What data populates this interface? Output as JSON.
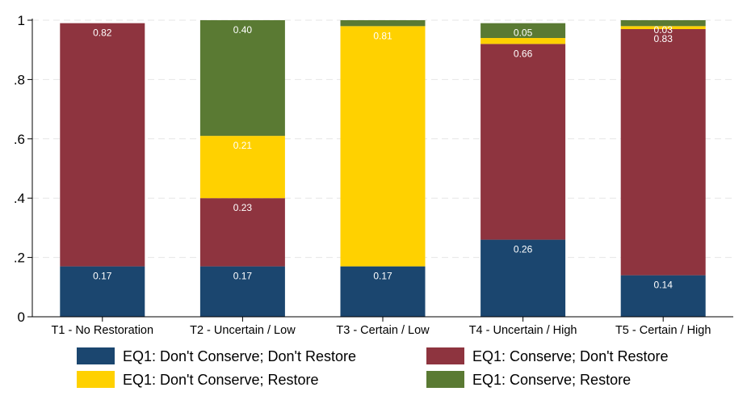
{
  "chart_data": {
    "type": "bar",
    "stacked": true,
    "categories": [
      "T1 - No Restoration",
      "T2 - Uncertain / Low",
      "T3 - Certain / Low",
      "T4 - Uncertain / High",
      "T5 - Certain / High"
    ],
    "series": [
      {
        "name": "EQ1: Don't Conserve; Don't Restore",
        "color": "#1b466f",
        "values": [
          0.17,
          0.17,
          0.17,
          0.26,
          0.14
        ],
        "labels": [
          "0.17",
          "0.17",
          "0.17",
          "0.26",
          "0.14"
        ]
      },
      {
        "name": "EQ1: Conserve; Don't Restore",
        "color": "#8e343f",
        "values": [
          0.82,
          0.23,
          0.0,
          0.66,
          0.83
        ],
        "labels": [
          "0.82",
          "0.23",
          "",
          "0.66",
          "0.83"
        ]
      },
      {
        "name": "EQ1: Don't Conserve; Restore",
        "color": "#ffd100",
        "values": [
          0.0,
          0.21,
          0.81,
          0.02,
          0.01
        ],
        "labels": [
          "",
          "0.21",
          "0.81",
          "",
          ""
        ]
      },
      {
        "name": "EQ1: Conserve; Restore",
        "color": "#5a7a33",
        "values": [
          0.0,
          0.4,
          0.02,
          0.05,
          0.03
        ],
        "labels": [
          "",
          "0.40",
          "",
          "0.05",
          "0.03"
        ]
      }
    ],
    "yticks": [
      0,
      0.2,
      0.4,
      0.6,
      0.8,
      1
    ],
    "ytick_labels": [
      "0",
      ".2",
      ".4",
      ".6",
      ".8",
      "1"
    ],
    "ylim": [
      0,
      1
    ],
    "grid": true,
    "legend_position": "bottom",
    "title": "",
    "xlabel": "",
    "ylabel": ""
  }
}
